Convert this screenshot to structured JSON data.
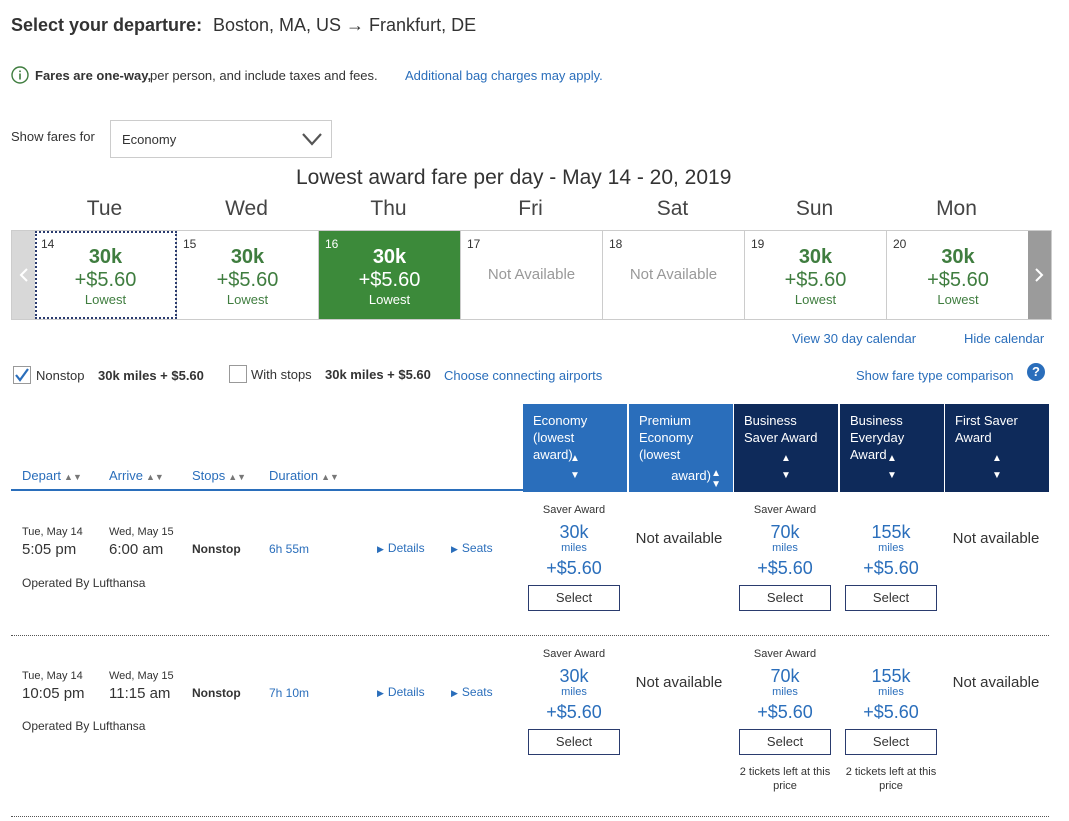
{
  "header": {
    "label": "Select your departure:",
    "route": "Boston, MA, US → Frankfurt, DE"
  },
  "info": {
    "bold": "Fares are one-way,",
    "rest": "per person, and include taxes and fees.",
    "link": "Additional bag charges may apply."
  },
  "fares_filter": {
    "label": "Show fares for",
    "selected": "Economy"
  },
  "calendar": {
    "title": "Lowest award fare per day - May 14 - 20, 2019",
    "days": [
      {
        "name": "Tue",
        "num": "14",
        "miles": "30k",
        "tax": "+$5.60",
        "note": "Lowest"
      },
      {
        "name": "Wed",
        "num": "15",
        "miles": "30k",
        "tax": "+$5.60",
        "note": "Lowest"
      },
      {
        "name": "Thu",
        "num": "16",
        "miles": "30k",
        "tax": "+$5.60",
        "note": "Lowest"
      },
      {
        "name": "Fri",
        "num": "17",
        "na": "Not Available"
      },
      {
        "name": "Sat",
        "num": "18",
        "na": "Not Available"
      },
      {
        "name": "Sun",
        "num": "19",
        "miles": "30k",
        "tax": "+$5.60",
        "note": "Lowest"
      },
      {
        "name": "Mon",
        "num": "20",
        "miles": "30k",
        "tax": "+$5.60",
        "note": "Lowest"
      }
    ],
    "view30": "View 30 day calendar",
    "hide": "Hide calendar"
  },
  "filters": {
    "nonstop_label": "Nonstop",
    "nonstop_price": "30k miles + $5.60",
    "stops_label": "With stops",
    "stops_price": "30k miles + $5.60",
    "connecting_link": "Choose connecting airports",
    "comparison_link": "Show fare type comparison",
    "help": "?"
  },
  "columns": {
    "depart": "Depart",
    "arrive": "Arrive",
    "stops": "Stops",
    "duration": "Duration",
    "fare_types": [
      {
        "line1": "Economy",
        "line2": "(lowest",
        "line3": "award)",
        "line4": ""
      },
      {
        "line1": "Premium",
        "line2": "Economy",
        "line3": "(lowest",
        "line4": "award)"
      },
      {
        "line1": "Business",
        "line2": "Saver Award",
        "line3": "",
        "line4": ""
      },
      {
        "line1": "Business",
        "line2": "Everyday",
        "line3": "Award",
        "line4": ""
      },
      {
        "line1": "First Saver",
        "line2": "Award",
        "line3": "",
        "line4": ""
      }
    ]
  },
  "flights": [
    {
      "dep_date": "Tue, May 14",
      "dep_time": "5:05 pm",
      "arr_date": "Wed, May 15",
      "arr_time": "6:00 am",
      "stops": "Nonstop",
      "duration": "6h 55m",
      "operator": "Operated By Lufthansa",
      "details": "Details",
      "seats": "Seats",
      "economy": {
        "type": "Saver Award",
        "miles": "30k",
        "miles_label": "miles",
        "tax": "+$5.60",
        "button": "Select"
      },
      "premium": "Not available",
      "business_saver": {
        "type": "Saver Award",
        "miles": "70k",
        "miles_label": "miles",
        "tax": "+$5.60",
        "button": "Select"
      },
      "business_everyday": {
        "miles": "155k",
        "miles_label": "miles",
        "tax": "+$5.60",
        "button": "Select"
      },
      "first": "Not available"
    },
    {
      "dep_date": "Tue, May 14",
      "dep_time": "10:05 pm",
      "arr_date": "Wed, May 15",
      "arr_time": "11:15 am",
      "stops": "Nonstop",
      "duration": "7h 10m",
      "operator": "Operated By Lufthansa",
      "details": "Details",
      "seats": "Seats",
      "economy": {
        "type": "Saver Award",
        "miles": "30k",
        "miles_label": "miles",
        "tax": "+$5.60",
        "button": "Select"
      },
      "premium": "Not available",
      "business_saver": {
        "type": "Saver Award",
        "miles": "70k",
        "miles_label": "miles",
        "tax": "+$5.60",
        "button": "Select",
        "note": "2 tickets left at this price"
      },
      "business_everyday": {
        "miles": "155k",
        "miles_label": "miles",
        "tax": "+$5.60",
        "button": "Select",
        "note": "2 tickets left at this price"
      },
      "first": "Not available"
    }
  ],
  "colors": {
    "link": "#2a6ebb",
    "selected_day": "#3c8a3a",
    "fare_green": "#3f7d3f",
    "economy_head": "#2a6ebb",
    "premium_head": "#2a6ebb",
    "business_head": "#0e2a5a"
  }
}
